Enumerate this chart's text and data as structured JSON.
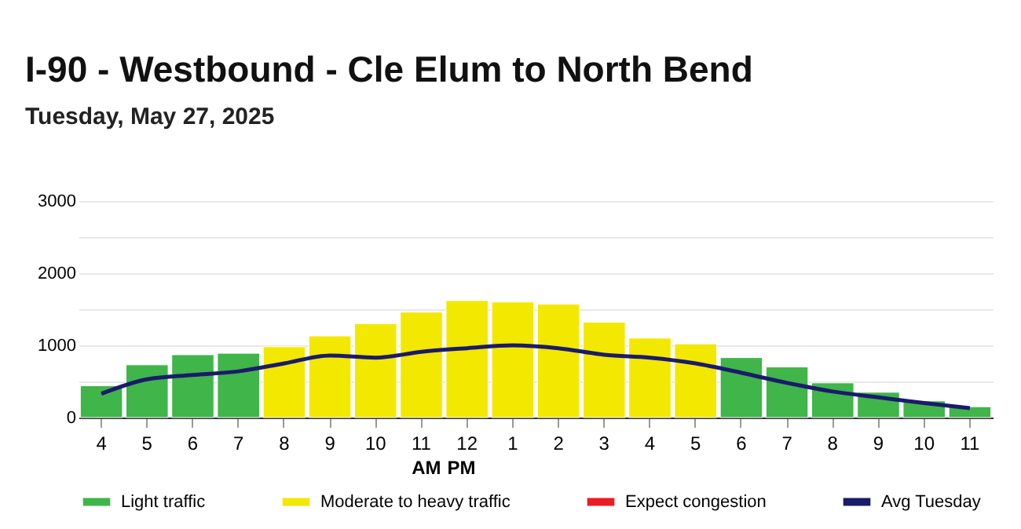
{
  "chart_data": {
    "type": "bar",
    "title": "I-90 - Westbound - Cle Elum to North Bend",
    "subtitle": "Tuesday, May 27, 2025",
    "categories": [
      "4",
      "5",
      "6",
      "7",
      "8",
      "9",
      "10",
      "11",
      "12",
      "1",
      "2",
      "3",
      "4",
      "5",
      "6",
      "7",
      "8",
      "9",
      "10",
      "11"
    ],
    "series": [
      {
        "name": "Light traffic",
        "color": "#3fb54a",
        "values": [
          440,
          730,
          870,
          890,
          null,
          null,
          null,
          null,
          null,
          null,
          null,
          null,
          null,
          null,
          830,
          700,
          480,
          350,
          230,
          150
        ]
      },
      {
        "name": "Moderate to heavy traffic",
        "color": "#f2e800",
        "values": [
          null,
          null,
          null,
          null,
          980,
          1130,
          1300,
          1460,
          1620,
          1600,
          1570,
          1320,
          1100,
          1020,
          null,
          null,
          null,
          null,
          null,
          null
        ]
      },
      {
        "name": "Expect congestion",
        "color": "#ec1c24",
        "values": [
          null,
          null,
          null,
          null,
          null,
          null,
          null,
          null,
          null,
          null,
          null,
          null,
          null,
          null,
          null,
          null,
          null,
          null,
          null,
          null
        ]
      },
      {
        "name": "Avg Tuesday",
        "type": "line",
        "color": "#1b1a6b",
        "values": [
          330,
          530,
          590,
          640,
          750,
          860,
          830,
          910,
          960,
          1000,
          960,
          870,
          830,
          750,
          620,
          480,
          360,
          280,
          200,
          130
        ]
      }
    ],
    "ylim": [
      0,
      3000
    ],
    "yticks": [
      0,
      {
        "value": 500,
        "label": null
      },
      1000,
      {
        "value": 1500,
        "label": null
      },
      2000,
      {
        "value": 2500,
        "label": null
      },
      3000
    ],
    "grid": "y",
    "legend": "bottom",
    "marker": "none",
    "annotations": [
      "AM",
      "PM"
    ]
  }
}
